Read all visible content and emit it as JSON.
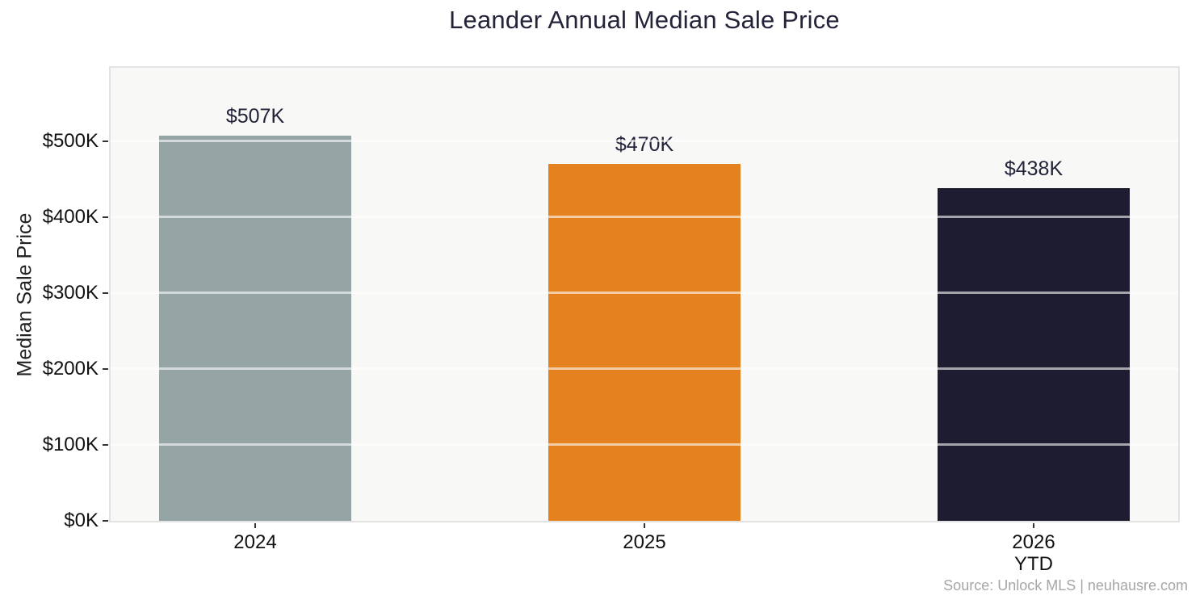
{
  "chart_data": {
    "type": "bar",
    "title": "Leander Annual Median Sale Price",
    "xlabel": "",
    "ylabel": "Median Sale Price",
    "categories": [
      "2024",
      "2025",
      "2026"
    ],
    "category_sublabels": [
      "",
      "",
      "YTD"
    ],
    "values": [
      507000,
      470000,
      438000
    ],
    "value_labels": [
      "$507K",
      "$470K",
      "$438K"
    ],
    "bar_colors": [
      "#95a4a5",
      "#e5821f",
      "#1d1c30"
    ],
    "yticks": [
      "$0K",
      "$100K",
      "$200K",
      "$300K",
      "$400K",
      "$500K"
    ],
    "ytick_values": [
      0,
      100000,
      200000,
      300000,
      400000,
      500000
    ],
    "ylim": [
      0,
      600000
    ],
    "grid": "horizontal white gridlines drawn over bars",
    "legend": "none",
    "plot_background": "#f8f8f7",
    "source_note": "Source: Unlock MLS | neuhausre.com"
  }
}
